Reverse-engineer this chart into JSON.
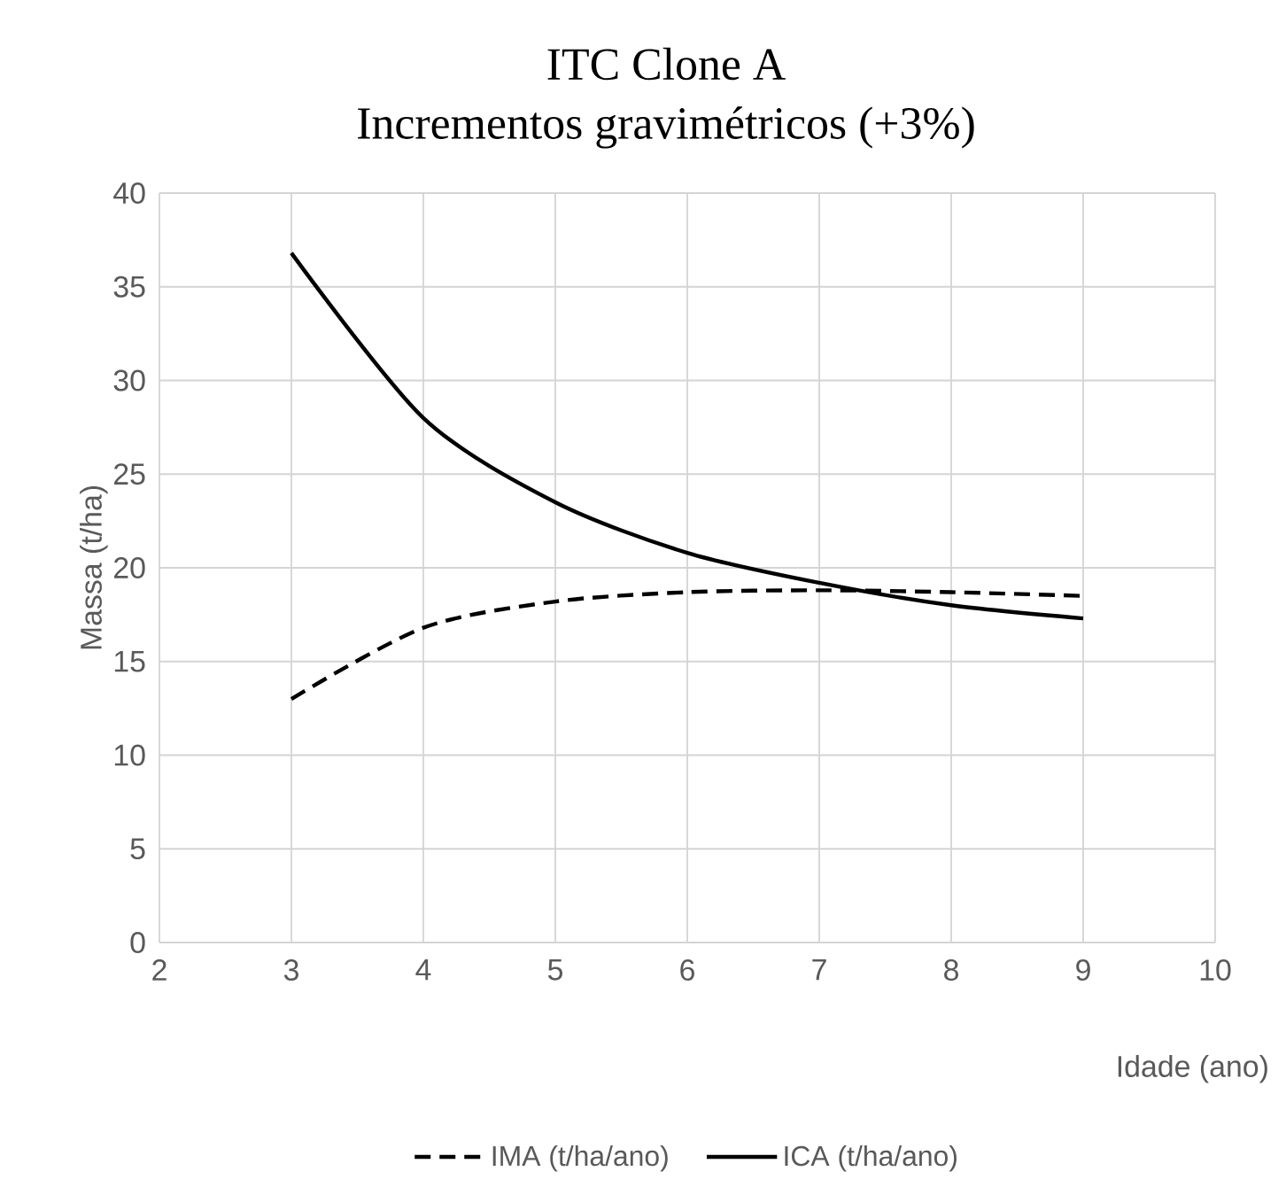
{
  "chart_data": {
    "type": "line",
    "title": "ITC Clone A",
    "subtitle": "Incrementos gravimétricos (+3%)",
    "xlabel": "Idade (ano)",
    "ylabel": "Massa (t/ha)",
    "x": [
      3,
      4,
      5,
      6,
      7,
      8,
      9
    ],
    "series": [
      {
        "name": "IMA (t/ha/ano)",
        "color": "#000000",
        "line_style": "dashed",
        "values": [
          13.0,
          16.8,
          18.2,
          18.7,
          18.8,
          18.7,
          18.5
        ]
      },
      {
        "name": "ICA (t/ha/ano)",
        "color": "#000000",
        "line_style": "solid",
        "values": [
          36.8,
          28.0,
          23.5,
          20.8,
          19.2,
          18.0,
          17.3
        ]
      }
    ],
    "xlim": [
      2,
      10
    ],
    "xticks": [
      2,
      3,
      4,
      5,
      6,
      7,
      8,
      9,
      10
    ],
    "ylim": [
      0,
      40
    ],
    "yticks": [
      0,
      5,
      10,
      15,
      20,
      25,
      30,
      35,
      40
    ],
    "grid": true,
    "legend": "bottom",
    "marker": "none"
  }
}
